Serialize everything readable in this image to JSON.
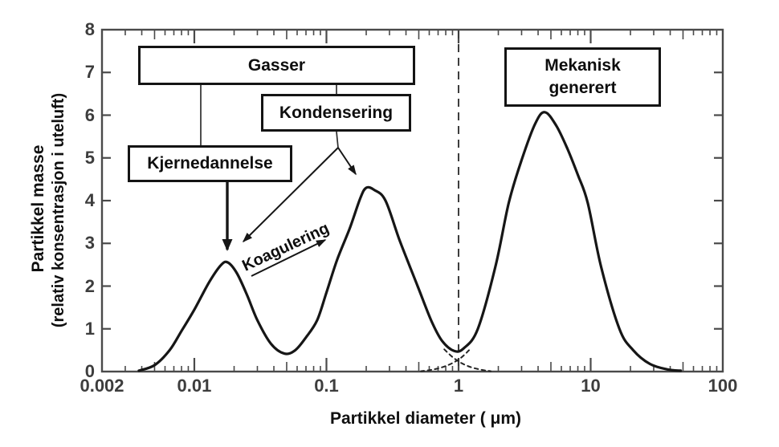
{
  "figure": {
    "background_color": "#ffffff",
    "ink_color": "#161616",
    "axis_color": "#4a4a4a"
  },
  "chart_data": {
    "type": "line",
    "title": "",
    "xlabel": "Partikkel diameter ( μm)",
    "ylabel": [
      "Partikkel masse",
      "(relativ konsentrasjon i  uteluft)"
    ],
    "x_scale": "log",
    "xlim": [
      0.002,
      100
    ],
    "ylim": [
      0,
      8
    ],
    "grid": false,
    "x_ticks": [
      {
        "value": 0.002,
        "label": "0.002"
      },
      {
        "value": 0.01,
        "label": "0.01"
      },
      {
        "value": 0.1,
        "label": "0.1"
      },
      {
        "value": 1,
        "label": "1"
      },
      {
        "value": 10,
        "label": "10"
      },
      {
        "value": 100,
        "label": "100"
      }
    ],
    "y_ticks": [
      0,
      1,
      2,
      3,
      4,
      5,
      6,
      7,
      8
    ],
    "series": [
      {
        "name": "partikkel-masse-fordeling",
        "style": "solid",
        "points": [
          [
            0.0038,
            0.02
          ],
          [
            0.005,
            0.15
          ],
          [
            0.0065,
            0.5
          ],
          [
            0.008,
            0.95
          ],
          [
            0.01,
            1.45
          ],
          [
            0.013,
            2.1
          ],
          [
            0.016,
            2.5
          ],
          [
            0.018,
            2.55
          ],
          [
            0.021,
            2.3
          ],
          [
            0.025,
            1.8
          ],
          [
            0.03,
            1.2
          ],
          [
            0.038,
            0.65
          ],
          [
            0.048,
            0.42
          ],
          [
            0.058,
            0.5
          ],
          [
            0.07,
            0.8
          ],
          [
            0.085,
            1.2
          ],
          [
            0.1,
            1.85
          ],
          [
            0.12,
            2.6
          ],
          [
            0.15,
            3.35
          ],
          [
            0.18,
            4.05
          ],
          [
            0.2,
            4.3
          ],
          [
            0.23,
            4.25
          ],
          [
            0.28,
            4.0
          ],
          [
            0.36,
            3.05
          ],
          [
            0.49,
            2.0
          ],
          [
            0.62,
            1.2
          ],
          [
            0.75,
            0.72
          ],
          [
            0.93,
            0.48
          ],
          [
            1.1,
            0.55
          ],
          [
            1.4,
            1.0
          ],
          [
            1.9,
            2.45
          ],
          [
            2.4,
            3.95
          ],
          [
            3.0,
            4.95
          ],
          [
            3.8,
            5.8
          ],
          [
            4.5,
            6.07
          ],
          [
            5.5,
            5.75
          ],
          [
            6.7,
            5.2
          ],
          [
            8.0,
            4.6
          ],
          [
            9.5,
            3.95
          ],
          [
            12.0,
            2.45
          ],
          [
            16.5,
            1.0
          ],
          [
            21.0,
            0.5
          ],
          [
            28.0,
            0.18
          ],
          [
            38.0,
            0.05
          ],
          [
            48.0,
            0.02
          ]
        ]
      },
      {
        "name": "akkumulerings-modus-hale",
        "style": "dashed",
        "points": [
          [
            0.78,
            0.52
          ],
          [
            0.9,
            0.34
          ],
          [
            1.05,
            0.2
          ],
          [
            1.25,
            0.1
          ],
          [
            1.5,
            0.04
          ],
          [
            1.75,
            0.01
          ]
        ]
      },
      {
        "name": "grov-modus-hale",
        "style": "dashed",
        "points": [
          [
            1.2,
            0.5
          ],
          [
            1.05,
            0.33
          ],
          [
            0.9,
            0.2
          ],
          [
            0.75,
            0.1
          ],
          [
            0.62,
            0.04
          ],
          [
            0.52,
            0.01
          ]
        ]
      }
    ],
    "reference_line": {
      "orientation": "vertical",
      "x": 1,
      "style": "dashed"
    },
    "annotations": {
      "gasser": "Gasser",
      "kondensering": "Kondensering",
      "kjernedannelse": "Kjernedannelse",
      "koagulering": "Koagulering",
      "mekanisk_line1": "Mekanisk",
      "mekanisk_line2": "generert"
    },
    "modes": [
      {
        "name": "kjernedannelse-modus",
        "peak_x_um": 0.018,
        "peak_y": 2.55
      },
      {
        "name": "akkumulerings-modus",
        "peak_x_um": 0.2,
        "peak_y": 4.3
      },
      {
        "name": "grov-modus",
        "peak_x_um": 4.5,
        "peak_y": 6.1
      }
    ]
  }
}
